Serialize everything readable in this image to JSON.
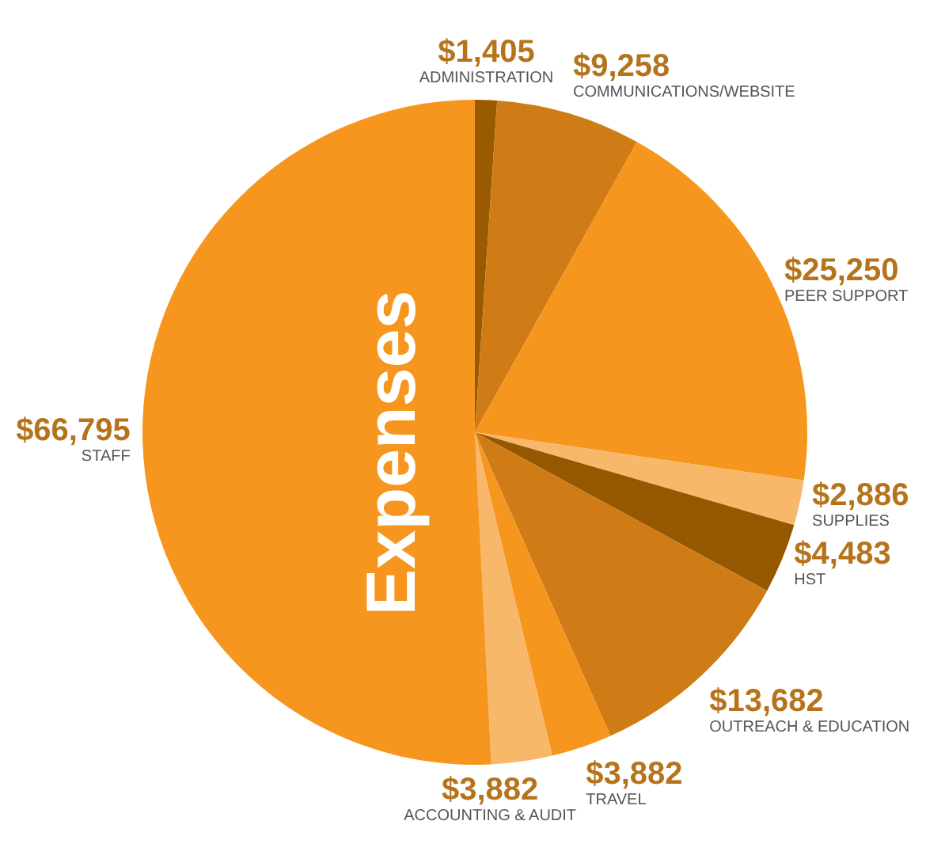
{
  "chart_data": {
    "type": "pie",
    "title": "Expenses",
    "categories": [
      "ADMINISTRATION",
      "COMMUNICATIONS/WEBSITE",
      "PEER SUPPORT",
      "SUPPLIES",
      "HST",
      "OUTREACH & EDUCATION",
      "TRAVEL",
      "ACCOUNTING & AUDIT",
      "STAFF"
    ],
    "values": [
      1405,
      9258,
      25250,
      2886,
      4483,
      13682,
      3882,
      3882,
      66795
    ],
    "colors": [
      "#9a5a00",
      "#cf7c16",
      "#f7961e",
      "#f8b86a",
      "#955800",
      "#cf7c16",
      "#f7961e",
      "#f8b86a",
      "#f7961e"
    ],
    "value_labels": [
      "$1,405",
      "$9,258",
      "$25,250",
      "$2,886",
      "$4,483",
      "$13,682",
      "$3,882",
      "$3,882",
      "$66,795"
    ]
  }
}
